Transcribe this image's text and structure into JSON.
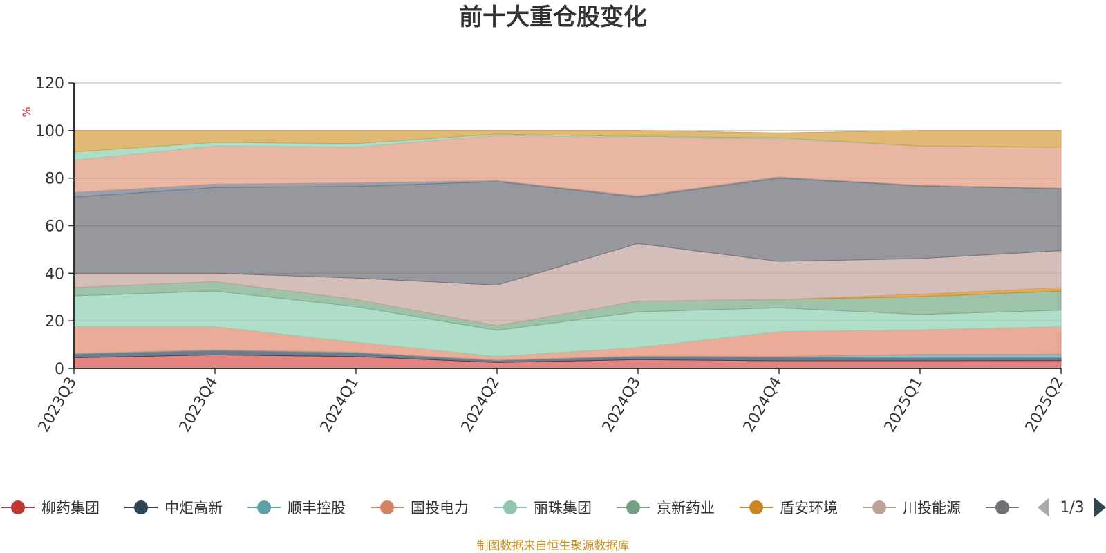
{
  "chart_data": {
    "type": "area",
    "stacked": true,
    "title": "前十大重仓股变化",
    "ylabel": "%",
    "ylim": [
      0,
      120
    ],
    "yticks": [
      0,
      20,
      40,
      60,
      80,
      100,
      120
    ],
    "grid": true,
    "categories": [
      "2023Q3",
      "2023Q4",
      "2024Q1",
      "2024Q2",
      "2024Q3",
      "2024Q4",
      "2025Q1",
      "2025Q2"
    ],
    "series": [
      {
        "name": "柳药集团",
        "color": "#d9534f",
        "values": [
          4.5,
          5.7,
          5.0,
          2.5,
          3.7,
          3.2,
          3.2,
          3.3
        ]
      },
      {
        "name": "中炬高新",
        "color": "#34495e",
        "values": [
          1.5,
          1.8,
          1.5,
          0.8,
          1.3,
          1.5,
          1.2,
          1.2
        ]
      },
      {
        "name": "顺丰控股",
        "color": "#5aa5b3",
        "values": [
          0.3,
          0.3,
          0.3,
          0.2,
          0.2,
          0.3,
          1.5,
          1.5
        ]
      },
      {
        "name": "国投电力",
        "color": "#e28b72",
        "values": [
          11.2,
          9.7,
          4.2,
          1.5,
          3.6,
          10.5,
          10.3,
          11.5
        ]
      },
      {
        "name": "丽珠集团",
        "color": "#8fd1b3",
        "values": [
          13.0,
          15.0,
          15.0,
          11.0,
          15.0,
          10.0,
          6.5,
          7.0
        ]
      },
      {
        "name": "京新药业",
        "color": "#7aaa8a",
        "values": [
          3.5,
          4.0,
          3.0,
          2.0,
          4.5,
          3.5,
          7.5,
          8.0
        ]
      },
      {
        "name": "盾安环境",
        "color": "#d8891a",
        "values": [
          0,
          0,
          0,
          0,
          0,
          0,
          1.0,
          1.5
        ]
      },
      {
        "name": "川投能源",
        "color": "#c4a59e",
        "values": [
          6.0,
          3.5,
          9.0,
          17.0,
          24.2,
          16.0,
          15.0,
          15.5
        ]
      },
      {
        "name": "",
        "color": "#6e7079",
        "values": [
          32.0,
          36.0,
          38.5,
          43.5,
          19.5,
          35.0,
          30.5,
          26.0
        ]
      },
      {
        "name": "",
        "color": "#6f7c8c",
        "values": [
          2.0,
          1.5,
          1.5,
          0.5,
          0.5,
          0.5,
          0.3,
          0.3
        ]
      },
      {
        "name": "",
        "color": "#e09a80",
        "values": [
          13.5,
          16.0,
          15.0,
          19.0,
          24.5,
          16.0,
          16.5,
          17.2
        ]
      },
      {
        "name": "",
        "color": "#8fd1b3",
        "values": [
          3.5,
          1.5,
          1.5,
          0.5,
          0.5,
          0.5,
          0.0,
          0.0
        ]
      },
      {
        "name": "",
        "color": "#d4a040",
        "values": [
          9.0,
          5.0,
          5.5,
          1.5,
          2.5,
          2.0,
          6.5,
          7.0
        ]
      }
    ]
  },
  "legend": {
    "items": [
      {
        "label": "柳药集团",
        "color": "#c23531"
      },
      {
        "label": "中炬高新",
        "color": "#2f4554"
      },
      {
        "label": "顺丰控股",
        "color": "#61a0a8"
      },
      {
        "label": "国投电力",
        "color": "#d48265"
      },
      {
        "label": "丽珠集团",
        "color": "#91c7ae"
      },
      {
        "label": "京新药业",
        "color": "#749f83"
      },
      {
        "label": "盾安环境",
        "color": "#ca8622"
      },
      {
        "label": "川投能源",
        "color": "#bda29a"
      },
      {
        "label": "",
        "color": "#6e7074"
      }
    ],
    "page": "1/3"
  },
  "source": "制图数据来自恒生聚源数据库"
}
